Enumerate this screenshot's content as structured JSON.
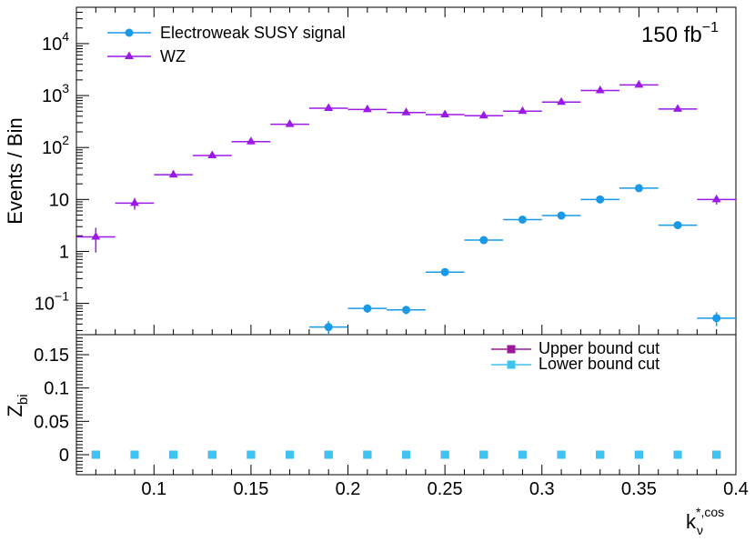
{
  "chart_data": [
    {
      "type": "scatter",
      "panel": "top",
      "ylabel": "Events / Bin",
      "yscale": "log",
      "ylim": [
        0.025,
        50000
      ],
      "xlim": [
        0.06,
        0.4
      ],
      "annotation": {
        "text": "150 fb",
        "superscript": "−1"
      },
      "legend_position": "top-left",
      "series": [
        {
          "name": "Electroweak SUSY signal",
          "marker": "circle",
          "color": "#1a9ae6",
          "x": [
            0.19,
            0.21,
            0.23,
            0.25,
            0.27,
            0.29,
            0.31,
            0.33,
            0.35,
            0.37,
            0.39
          ],
          "y": [
            0.035,
            0.08,
            0.075,
            0.4,
            1.65,
            4.1,
            4.9,
            10.0,
            16.5,
            3.2,
            0.052
          ],
          "xerr": 0.01,
          "yerr_rel": [
            0.3,
            0.18,
            0.18,
            0.08,
            0.05,
            0.04,
            0.04,
            0.03,
            0.03,
            0.05,
            0.3
          ]
        },
        {
          "name": "WZ",
          "marker": "triangle",
          "color": "#9b1ae6",
          "x": [
            0.07,
            0.09,
            0.11,
            0.13,
            0.15,
            0.17,
            0.19,
            0.21,
            0.23,
            0.25,
            0.27,
            0.29,
            0.31,
            0.33,
            0.35,
            0.37,
            0.39
          ],
          "y": [
            1.9,
            8.5,
            30,
            70,
            130,
            280,
            570,
            540,
            470,
            430,
            410,
            500,
            750,
            1250,
            1600,
            550,
            10
          ],
          "xerr": 0.01,
          "yerr_rel": [
            0.5,
            0.25,
            0.12,
            0.08,
            0.06,
            0.04,
            0.03,
            0.03,
            0.03,
            0.03,
            0.03,
            0.03,
            0.03,
            0.02,
            0.02,
            0.03,
            0.2
          ]
        }
      ],
      "yticks": [
        {
          "value": 0.1,
          "label": "10",
          "sup": "−1"
        },
        {
          "value": 1,
          "label": "1",
          "sup": ""
        },
        {
          "value": 10,
          "label": "10",
          "sup": ""
        },
        {
          "value": 100,
          "label": "10",
          "sup": "2"
        },
        {
          "value": 1000,
          "label": "10",
          "sup": "3"
        },
        {
          "value": 10000,
          "label": "10",
          "sup": "4"
        }
      ]
    },
    {
      "type": "scatter",
      "panel": "bottom",
      "ylabel": "Z",
      "ylabel_sub": "bi",
      "xlabel": "k",
      "xlabel_sub": "ν",
      "xlabel_sup": "*,cos",
      "ylim": [
        -0.03,
        0.18
      ],
      "xlim": [
        0.06,
        0.4
      ],
      "legend_position": "top-right",
      "xticks": [
        0.1,
        0.15,
        0.2,
        0.25,
        0.3,
        0.35,
        0.4
      ],
      "xtick_labels": [
        "0.1",
        "0.15",
        "0.2",
        "0.25",
        "0.3",
        "0.35",
        "0.4"
      ],
      "yticks": [
        0,
        0.05,
        0.1,
        0.15
      ],
      "ytick_labels": [
        "0",
        "0.05",
        "0.1",
        "0.15"
      ],
      "series": [
        {
          "name": "Upper bound cut",
          "marker": "square",
          "color": "#9b1a9b",
          "x": [
            0.07,
            0.09,
            0.11,
            0.13,
            0.15,
            0.17,
            0.19,
            0.21,
            0.23,
            0.25,
            0.27,
            0.29,
            0.31,
            0.33,
            0.35,
            0.37,
            0.39
          ],
          "y": [
            0,
            0,
            0,
            0,
            0,
            0,
            0,
            0,
            0,
            0,
            0,
            0,
            0,
            0,
            0,
            0,
            0
          ]
        },
        {
          "name": "Lower bound cut",
          "marker": "square",
          "color": "#3ec4f0",
          "x": [
            0.07,
            0.09,
            0.11,
            0.13,
            0.15,
            0.17,
            0.19,
            0.21,
            0.23,
            0.25,
            0.27,
            0.29,
            0.31,
            0.33,
            0.35,
            0.37,
            0.39
          ],
          "y": [
            0,
            0,
            0,
            0,
            0,
            0,
            0,
            0,
            0,
            0,
            0,
            0,
            0,
            0,
            0,
            0,
            0
          ]
        }
      ]
    }
  ]
}
